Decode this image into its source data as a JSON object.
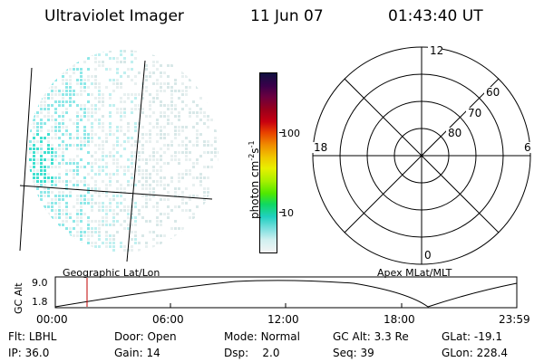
{
  "header": {
    "title": "Ultraviolet Imager",
    "date": "11 Jun 07",
    "time": "01:43:40 UT"
  },
  "colorbar": {
    "unit": "photon cm",
    "unit_exp1": "-2",
    "unit_mid": "s",
    "unit_exp2": "-1",
    "ticks": [
      "100",
      "10"
    ],
    "colors": [
      "#101040",
      "#3a004a",
      "#6a0040",
      "#98001c",
      "#c80010",
      "#e84000",
      "#f08c00",
      "#f0c800",
      "#e8f000",
      "#a8f000",
      "#50e800",
      "#10d860",
      "#20d0c0",
      "#80e0e0",
      "#d0f0f0",
      "#f4f4f4"
    ]
  },
  "left_panel": {
    "label": "Geographic Lat/Lon",
    "pixel_colors": [
      "#d8e8e8",
      "#c0f0f0",
      "#90e8e8",
      "#40e0d0",
      "#e8f0f0"
    ]
  },
  "right_panel": {
    "label": "Apex MLat/MLT",
    "mlt_labels": {
      "top": "12",
      "left": "18",
      "right": "6",
      "bottom": "0"
    },
    "lat_labels": [
      "60",
      "70",
      "80"
    ]
  },
  "timeline": {
    "ylabel": "GC Alt",
    "ticks_y": [
      "9.0",
      "1.8"
    ],
    "ticks_x": [
      "00:00",
      "06:00",
      "12:00",
      "18:00",
      "23:59"
    ],
    "marker_time": "01:43:40"
  },
  "footer": {
    "row1": [
      {
        "label": "Flt:",
        "value": "LBHL"
      },
      {
        "label": "Door:",
        "value": "Open"
      },
      {
        "label": "Mode:",
        "value": "Normal"
      },
      {
        "label": "GC Alt:",
        "value": "3.3 Re"
      },
      {
        "label": "GLat:",
        "value": "-19.1"
      }
    ],
    "row2": [
      {
        "label": "IP:",
        "value": "36.0"
      },
      {
        "label": "Gain:",
        "value": "14"
      },
      {
        "label": "Dsp:",
        "value": "2.0"
      },
      {
        "label": "Seq:",
        "value": "39"
      },
      {
        "label": "GLon:",
        "value": "228.4"
      }
    ]
  }
}
